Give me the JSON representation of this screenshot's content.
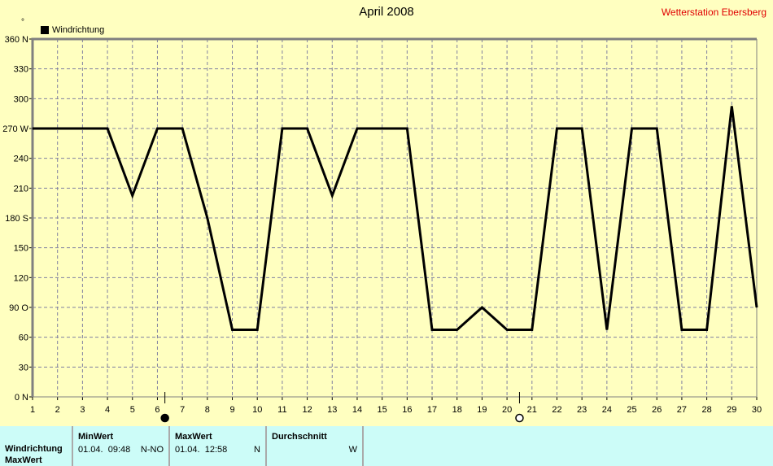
{
  "header": {
    "title": "April 2008",
    "station": "Wetterstation Ebersberg",
    "unit_symbol": "°"
  },
  "chart_data": {
    "type": "line",
    "title": "April 2008",
    "legend": [
      {
        "name": "Windrichtung",
        "color": "#000000"
      }
    ],
    "legend_placement": "top-left",
    "x": [
      1,
      2,
      3,
      4,
      5,
      6,
      7,
      8,
      9,
      10,
      11,
      12,
      13,
      14,
      15,
      16,
      17,
      18,
      19,
      20,
      21,
      22,
      23,
      24,
      25,
      26,
      27,
      28,
      29,
      30
    ],
    "series": [
      {
        "name": "Windrichtung",
        "values": [
          270,
          270,
          270,
          270,
          202.5,
          270,
          270,
          180,
          67.5,
          67.5,
          270,
          270,
          202.5,
          270,
          270,
          270,
          67.5,
          67.5,
          90,
          67.5,
          67.5,
          270,
          270,
          67.5,
          270,
          270,
          67.5,
          67.5,
          292.5,
          90
        ]
      }
    ],
    "xlim": [
      1,
      30
    ],
    "ylim": [
      0,
      360
    ],
    "yticks": [
      {
        "v": 0,
        "label": "0  N"
      },
      {
        "v": 30,
        "label": "30"
      },
      {
        "v": 60,
        "label": "60"
      },
      {
        "v": 90,
        "label": "90  O"
      },
      {
        "v": 120,
        "label": "120"
      },
      {
        "v": 150,
        "label": "150"
      },
      {
        "v": 180,
        "label": "180 S"
      },
      {
        "v": 210,
        "label": "210"
      },
      {
        "v": 240,
        "label": "240"
      },
      {
        "v": 270,
        "label": "270 W"
      },
      {
        "v": 300,
        "label": "300"
      },
      {
        "v": 330,
        "label": "330"
      },
      {
        "v": 360,
        "label": "360 N"
      }
    ],
    "grid": true,
    "moon_markers": [
      {
        "day": 6.3,
        "phase": "new-moon"
      },
      {
        "day": 20.5,
        "phase": "full-moon"
      }
    ]
  },
  "table": {
    "row_label": "Windrichtung",
    "next_row_label": "MaxWert",
    "min": {
      "header": "MinWert",
      "date": "01.04.",
      "time": "09:48",
      "value": "N-NO"
    },
    "max": {
      "header": "MaxWert",
      "date": "01.04.",
      "time": "12:58",
      "value": "N"
    },
    "avg": {
      "header": "Durchschnitt",
      "value": "W"
    }
  }
}
